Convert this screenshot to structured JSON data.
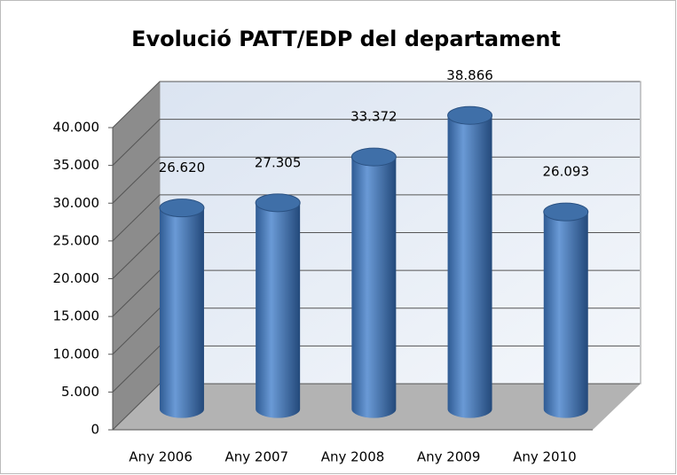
{
  "chart_data": {
    "type": "bar",
    "title": "Evolució PATT/EDP del departament",
    "categories": [
      "Any 2006",
      "Any 2007",
      "Any 2008",
      "Any 2009",
      "Any 2010"
    ],
    "values": [
      26620,
      27305,
      33372,
      38866,
      26093
    ],
    "value_labels": [
      "26.620",
      "27.305",
      "33.372",
      "38.866",
      "26.093"
    ],
    "color": "#4f81bd",
    "ylim": [
      0,
      40000
    ],
    "yticks": [
      0,
      {
        "value": 5000,
        "label": "5.000"
      },
      {
        "value": 10000,
        "label": "10.000"
      },
      {
        "value": 15000,
        "label": "15.000"
      },
      {
        "value": 20000,
        "label": "20.000"
      },
      {
        "value": 25000,
        "label": "25.000"
      },
      {
        "value": 30000,
        "label": "30.000"
      },
      {
        "value": 35000,
        "label": "35.000"
      },
      {
        "value": 40000,
        "label": "40.000"
      }
    ],
    "grid": true
  }
}
